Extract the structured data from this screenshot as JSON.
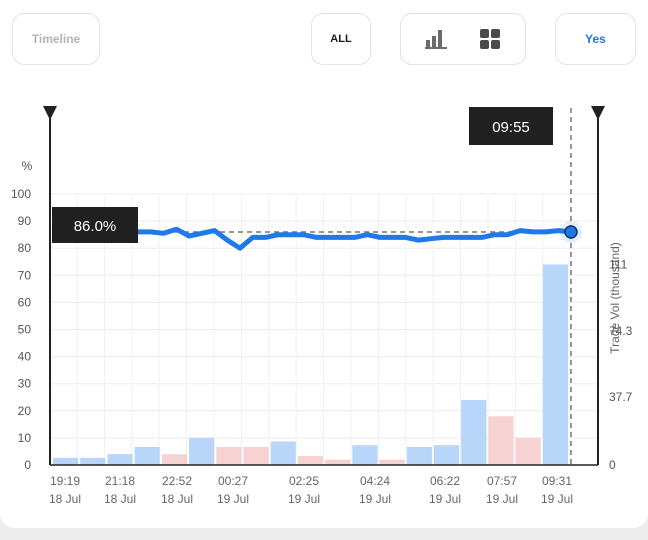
{
  "toolbar": {
    "timeline_label": "Timeline",
    "all_label": "ALL",
    "bar_chart_icon": "bar-chart-icon",
    "grid_icon": "grid-icon",
    "yes_label": "Yes"
  },
  "colors": {
    "accent": "#2377e6",
    "line": "#1f7ae8",
    "vol_up": "#b8d6fa",
    "vol_down": "#f6d2d2",
    "label_bg": "#202020"
  },
  "crosshair": {
    "time_label": "09:55",
    "value_label": "86.0%"
  },
  "chart_data": {
    "type": "line",
    "title": "",
    "y_unit_label": "%",
    "ylabel_right": "Trade Vol (thousand)",
    "ylim": [
      0,
      100
    ],
    "y_ticks": [
      "100",
      "90",
      "80",
      "70",
      "60",
      "50",
      "40",
      "30",
      "20",
      "10",
      "0"
    ],
    "y2lim": [
      0,
      150
    ],
    "y2_ticks": [
      "111",
      "74.3",
      "37.7",
      "0"
    ],
    "x_ticks": [
      {
        "time": "19:19",
        "date": "18 Jul"
      },
      {
        "time": "21:18",
        "date": "18 Jul"
      },
      {
        "time": "22:52",
        "date": "18 Jul"
      },
      {
        "time": "00:27",
        "date": "19 Jul"
      },
      {
        "time": "02:25",
        "date": "19 Jul"
      },
      {
        "time": "04:24",
        "date": "19 Jul"
      },
      {
        "time": "06:22",
        "date": "19 Jul"
      },
      {
        "time": "07:57",
        "date": "19 Jul"
      },
      {
        "time": "09:31",
        "date": "19 Jul"
      }
    ],
    "series": [
      {
        "values": [
          86,
          86,
          86,
          86,
          86,
          85.5,
          87,
          84.5,
          85.5,
          86.5,
          83,
          80,
          84,
          84,
          85,
          85,
          85,
          84,
          84,
          84,
          84,
          85,
          84,
          84,
          84,
          83,
          83.5,
          84,
          84,
          84,
          84,
          85,
          85,
          86.5,
          86,
          86,
          86.5,
          86
        ]
      }
    ],
    "volume": [
      {
        "value": 4,
        "dir": "up"
      },
      {
        "value": 4,
        "dir": "up"
      },
      {
        "value": 6,
        "dir": "up"
      },
      {
        "value": 10,
        "dir": "up"
      },
      {
        "value": 6,
        "dir": "down"
      },
      {
        "value": 15,
        "dir": "up"
      },
      {
        "value": 10,
        "dir": "down"
      },
      {
        "value": 10,
        "dir": "down"
      },
      {
        "value": 13,
        "dir": "up"
      },
      {
        "value": 5,
        "dir": "down"
      },
      {
        "value": 3,
        "dir": "down"
      },
      {
        "value": 11,
        "dir": "up"
      },
      {
        "value": 3,
        "dir": "down"
      },
      {
        "value": 10,
        "dir": "up"
      },
      {
        "value": 11,
        "dir": "up"
      },
      {
        "value": 36,
        "dir": "up"
      },
      {
        "value": 27,
        "dir": "down"
      },
      {
        "value": 15,
        "dir": "down"
      },
      {
        "value": 111,
        "dir": "up"
      }
    ],
    "reference_value": 86.0,
    "grid": true
  }
}
